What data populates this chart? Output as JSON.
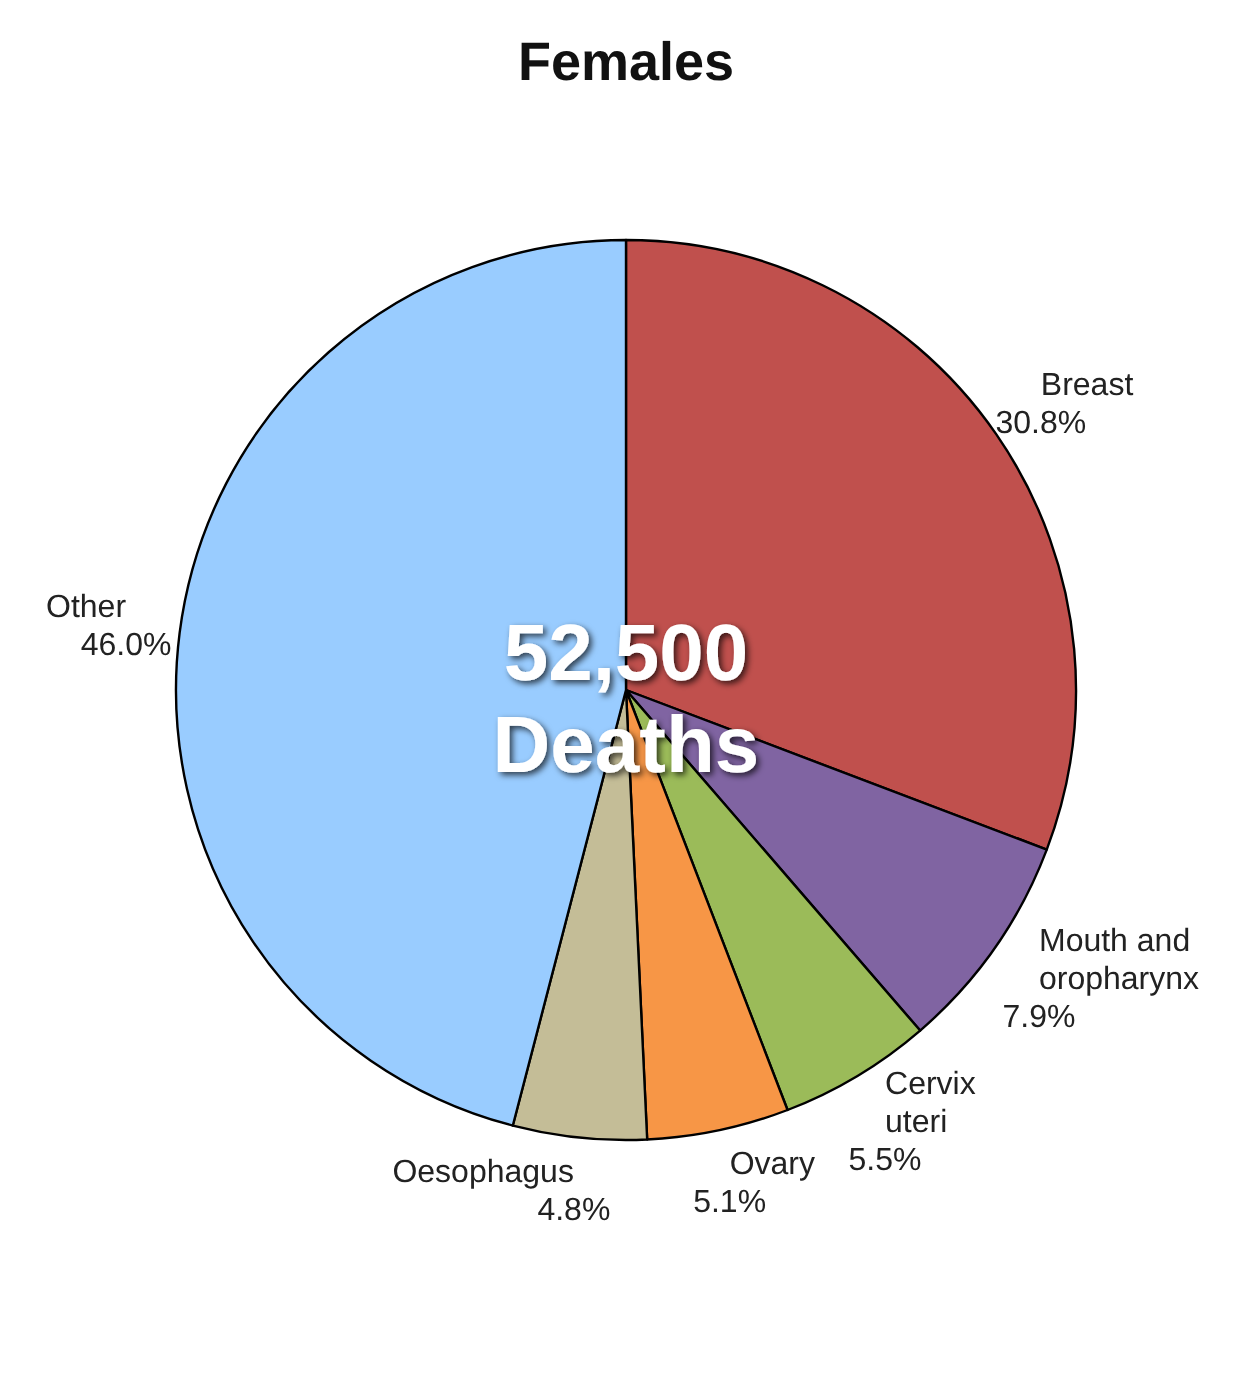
{
  "chart_data": {
    "type": "pie",
    "title": "Females",
    "categories": [
      "Breast",
      "Mouth and oropharynx",
      "Cervix uteri",
      "Ovary",
      "Oesophagus",
      "Other"
    ],
    "values": [
      30.8,
      7.9,
      5.5,
      5.1,
      4.8,
      46.0
    ],
    "colors": [
      "#c0504d",
      "#8064a2",
      "#9bbb59",
      "#f79646",
      "#c4bd97",
      "#99ccff"
    ],
    "value_labels": [
      "30.8%",
      "7.9%",
      "5.5%",
      "5.1%",
      "4.8%",
      "46.0%"
    ],
    "annotations": [
      "52,500 Deaths"
    ]
  }
}
